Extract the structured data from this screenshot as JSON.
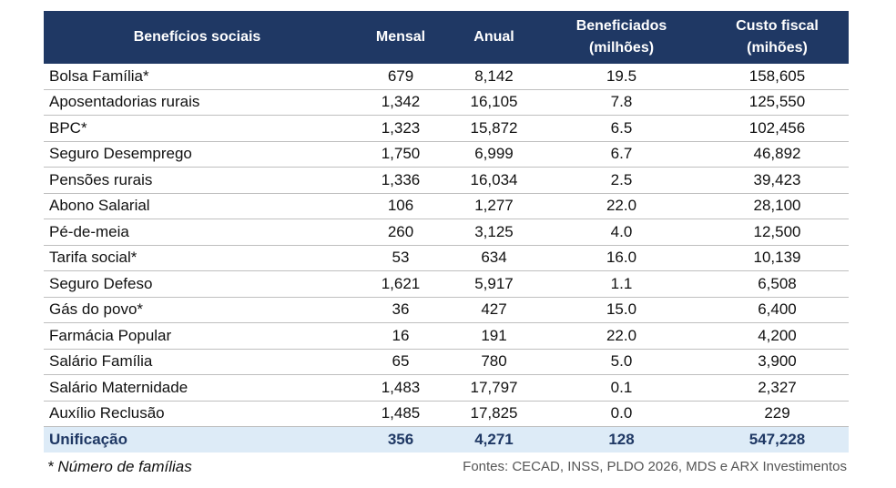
{
  "table": {
    "header": [
      [
        "Benefícios sociais"
      ],
      [
        "Mensal"
      ],
      [
        "Anual"
      ],
      [
        "Beneficiados",
        "(milhões)"
      ],
      [
        "Custo fiscal",
        "(mihões)"
      ]
    ],
    "rows": [
      [
        "Bolsa Família*",
        "679",
        "8,142",
        "19.5",
        "158,605"
      ],
      [
        "Aposentadorias rurais",
        "1,342",
        "16,105",
        "7.8",
        "125,550"
      ],
      [
        "BPC*",
        "1,323",
        "15,872",
        "6.5",
        "102,456"
      ],
      [
        "Seguro Desemprego",
        "1,750",
        "6,999",
        "6.7",
        "46,892"
      ],
      [
        "Pensões rurais",
        "1,336",
        "16,034",
        "2.5",
        "39,423"
      ],
      [
        "Abono Salarial",
        "106",
        "1,277",
        "22.0",
        "28,100"
      ],
      [
        "Pé-de-meia",
        "260",
        "3,125",
        "4.0",
        "12,500"
      ],
      [
        "Tarifa social*",
        "53",
        "634",
        "16.0",
        "10,139"
      ],
      [
        "Seguro Defeso",
        "1,621",
        "5,917",
        "1.1",
        "6,508"
      ],
      [
        "Gás do povo*",
        "36",
        "427",
        "15.0",
        "6,400"
      ],
      [
        "Farmácia Popular",
        "16",
        "191",
        "22.0",
        "4,200"
      ],
      [
        "Salário Família",
        "65",
        "780",
        "5.0",
        "3,900"
      ],
      [
        "Salário Maternidade",
        "1,483",
        "17,797",
        "0.1",
        "2,327"
      ],
      [
        "Auxílio Reclusão",
        "1,485",
        "17,825",
        "0.0",
        "229"
      ]
    ],
    "total": [
      "Unificação",
      "356",
      "4,271",
      "128",
      "547,228"
    ]
  },
  "footnote": "* Número de famílias",
  "source": "Fontes: CECAD, INSS, PLDO 2026, MDS e ARX Investimentos"
}
